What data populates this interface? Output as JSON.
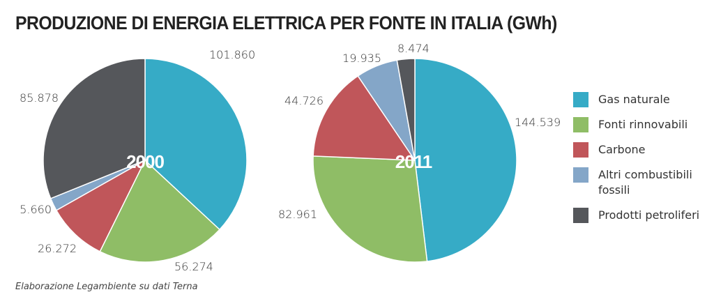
{
  "title": "PRODUZIONE DI ENERGIA ELETTRICA PER FONTE IN ITALIA (GWh)",
  "source": "Elaborazione Legambiente su dati Terna",
  "colors": {
    "gas": "#36abc6",
    "renewables": "#8fbd66",
    "coal": "#c0565a",
    "other_fossil": "#84a6c8",
    "oil": "#55575b"
  },
  "legend": [
    {
      "key": "gas",
      "label": "Gas naturale"
    },
    {
      "key": "renewables",
      "label": "Fonti rinnovabili"
    },
    {
      "key": "coal",
      "label": "Carbone"
    },
    {
      "key": "other_fossil",
      "label": "Altri combustibili fossili"
    },
    {
      "key": "oil",
      "label": "Prodotti petroliferi"
    }
  ],
  "chart_data": [
    {
      "type": "pie",
      "title": "2000",
      "slices": [
        {
          "key": "gas",
          "label": "Gas naturale",
          "value": 101860,
          "display": "101.860"
        },
        {
          "key": "renewables",
          "label": "Fonti rinnovabili",
          "value": 56274,
          "display": "56.274"
        },
        {
          "key": "coal",
          "label": "Carbone",
          "value": 26272,
          "display": "26.272"
        },
        {
          "key": "other_fossil",
          "label": "Altri combustibili fossili",
          "value": 5660,
          "display": "5.660"
        },
        {
          "key": "oil",
          "label": "Prodotti petroliferi",
          "value": 85878,
          "display": "85.878"
        }
      ]
    },
    {
      "type": "pie",
      "title": "2011",
      "slices": [
        {
          "key": "gas",
          "label": "Gas naturale",
          "value": 144539,
          "display": "144.539"
        },
        {
          "key": "renewables",
          "label": "Fonti rinnovabili",
          "value": 82961,
          "display": "82.961"
        },
        {
          "key": "coal",
          "label": "Carbone",
          "value": 44726,
          "display": "44.726"
        },
        {
          "key": "other_fossil",
          "label": "Altri combustibili fossili",
          "value": 19935,
          "display": "19.935"
        },
        {
          "key": "oil",
          "label": "Prodotti petroliferi",
          "value": 8474,
          "display": "8.474"
        }
      ]
    }
  ]
}
